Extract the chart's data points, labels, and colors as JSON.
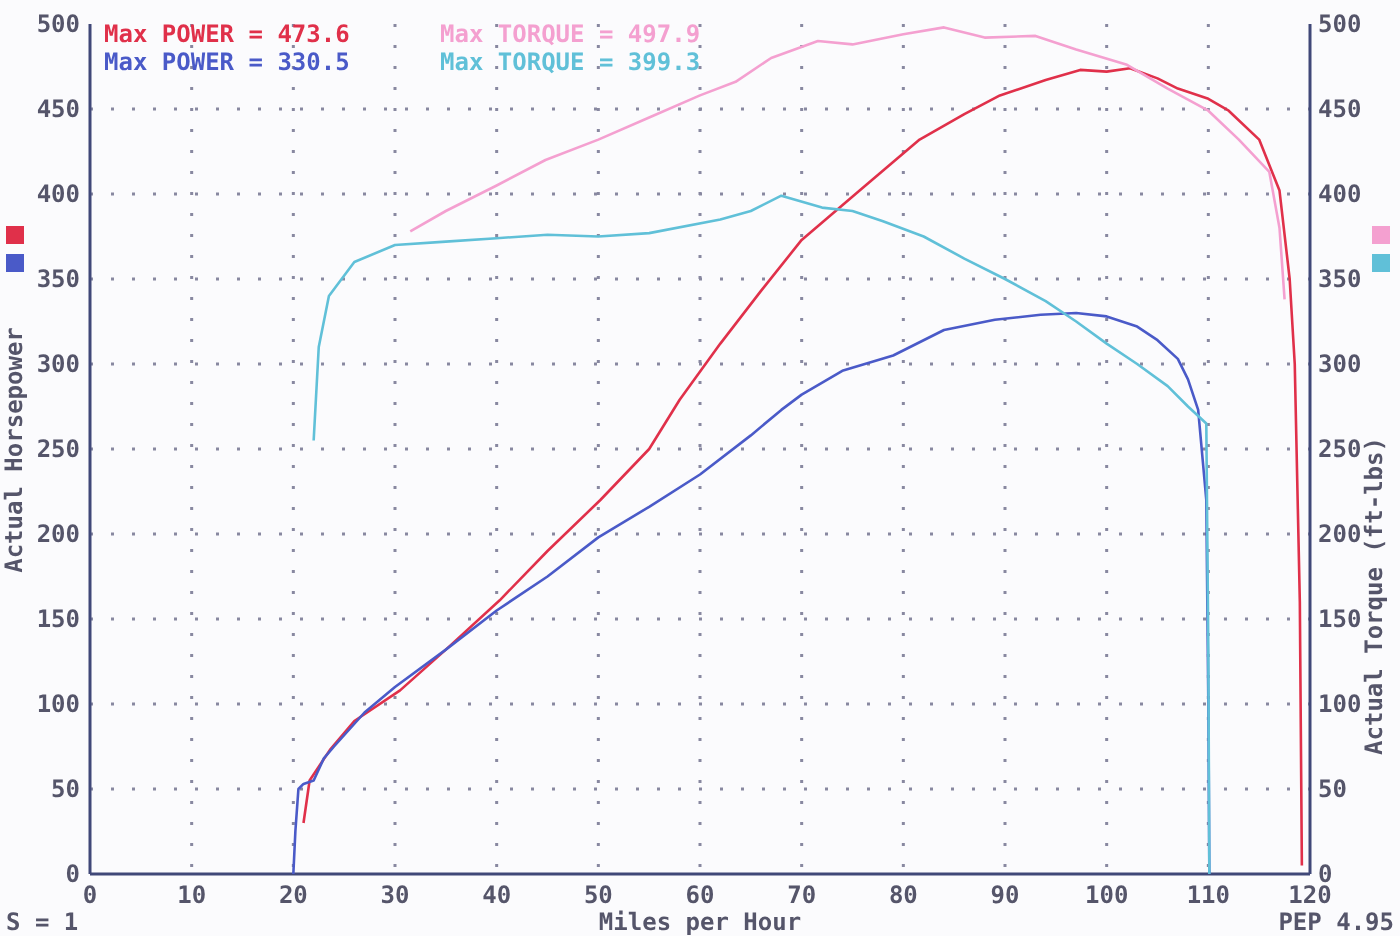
{
  "chart_data": {
    "type": "line",
    "xlabel": "Miles per Hour",
    "ylabel": "Actual Horsepower",
    "y2label": "Actual Torque (ft-lbs)",
    "xlim": [
      0,
      120
    ],
    "xticks": [
      0,
      10,
      20,
      30,
      40,
      50,
      60,
      70,
      80,
      90,
      100,
      110,
      120
    ],
    "ylim": [
      0,
      500
    ],
    "yticks": [
      0,
      50,
      100,
      150,
      200,
      250,
      300,
      350,
      400,
      450,
      500
    ],
    "y2lim": [
      0,
      500
    ],
    "y2ticks": [
      0,
      50,
      100,
      150,
      200,
      250,
      300,
      350,
      400,
      450,
      500
    ],
    "grid": true,
    "marker": "none",
    "line_style": "solid",
    "annotations": [
      "Max POWER = 473.6",
      "Max TORQUE = 497.9",
      "Max POWER = 330.5",
      "Max TORQUE = 399.3",
      "S = 1",
      "PEP 4.95"
    ],
    "series": [
      {
        "color": "#e0304a",
        "x": [
          21,
          21.6,
          23.6,
          26,
          30.5,
          35,
          40.3,
          45,
          50.2,
          55,
          58,
          62,
          66,
          70,
          75.7,
          81.6,
          86,
          89.5,
          94,
          97.4,
          100,
          102.3,
          105,
          107,
          110,
          112,
          115,
          117,
          118,
          118.5,
          119,
          119.2
        ],
        "values": [
          30,
          55,
          73,
          90,
          108,
          132,
          161,
          190,
          220,
          250,
          279,
          312,
          343,
          373,
          402,
          432,
          447,
          458,
          467,
          473,
          472,
          474,
          468,
          462,
          456,
          449,
          432,
          402,
          350,
          300,
          160,
          5
        ]
      },
      {
        "color": "#f4a0d0",
        "x": [
          31.5,
          35,
          40,
          44.8,
          50,
          55,
          60,
          63.5,
          67,
          71.6,
          75,
          80,
          84,
          88,
          93,
          97,
          102,
          106,
          110,
          113,
          116,
          117,
          117.5
        ],
        "values": [
          378,
          390,
          405,
          420,
          432,
          445,
          458,
          466,
          480,
          490,
          488,
          494,
          498,
          492,
          493,
          485,
          476,
          462,
          449,
          432,
          413,
          380,
          338
        ],
        "axis": "y2"
      },
      {
        "color": "#4a5ac8",
        "x": [
          20,
          20.2,
          20.5,
          21,
          22,
          23,
          24,
          27,
          30,
          35,
          40,
          45,
          50,
          55,
          60,
          65,
          68,
          70,
          74,
          79,
          84,
          89,
          93.5,
          97,
          100,
          103,
          105,
          107,
          108,
          109,
          109.8,
          110,
          110.1
        ],
        "values": [
          0,
          25,
          50,
          53,
          55,
          68,
          75,
          95,
          110,
          132,
          155,
          175,
          198,
          216,
          235,
          258,
          273,
          282,
          296,
          305,
          320,
          326,
          329,
          330,
          328,
          322,
          314,
          303,
          291,
          273,
          220,
          100,
          0
        ]
      },
      {
        "color": "#60c0d8",
        "x": [
          22,
          22.5,
          23.5,
          26,
          30,
          35,
          40,
          45,
          50,
          55,
          62,
          65,
          68,
          72,
          75,
          78,
          82,
          86,
          90,
          94,
          97,
          100,
          103,
          106,
          108,
          109.8,
          110,
          110.1
        ],
        "values": [
          255,
          310,
          340,
          360,
          370,
          372,
          374,
          376,
          375,
          377,
          385,
          390,
          399,
          392,
          390,
          384,
          375,
          362,
          350,
          337,
          325,
          312,
          300,
          287,
          275,
          265,
          130,
          0
        ],
        "axis": "y2"
      }
    ]
  }
}
